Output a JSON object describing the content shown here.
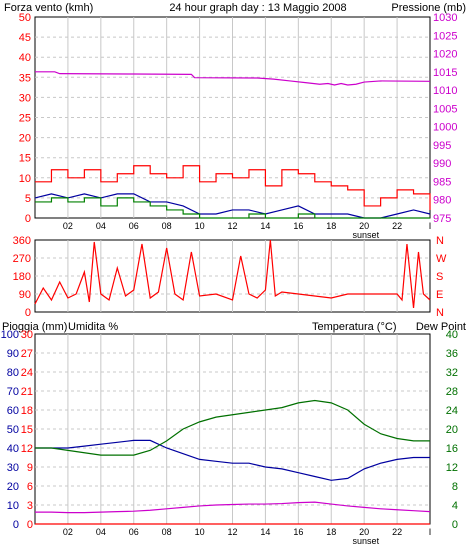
{
  "colors": {
    "wind": "#ff0000",
    "gust": "#ff0000",
    "avg_wind": "#008000",
    "pressure": "#cc00cc",
    "humidity": "#0000a0",
    "temperature": "#007000",
    "dew_point": "#cc00cc",
    "rain": "#ff0000",
    "grid": "#c8c8c8",
    "axis": "#000000",
    "frame_bg": "#ffffff"
  },
  "header": {
    "left_label": "Forza vento (kmh)",
    "title": "24 hour graph day : 13 Maggio 2008",
    "right_label": "Pressione (mb)"
  },
  "time_axis": {
    "ticks": [
      "02",
      "04",
      "06",
      "08",
      "10",
      "12",
      "14",
      "16",
      "18",
      "20",
      "22",
      "I"
    ],
    "sunset_label": "sunset"
  },
  "chart_data": [
    {
      "type": "line",
      "title": "24 hour graph day : 13 Maggio 2008",
      "xlabel": "",
      "x_range": [
        0,
        24
      ],
      "left_axis": {
        "label": "Forza vento (kmh)",
        "ticks": [
          0,
          5,
          10,
          15,
          20,
          25,
          30,
          35,
          40,
          45,
          50
        ],
        "range": [
          0,
          50
        ]
      },
      "right_axis": {
        "label": "Pressione (mb)",
        "ticks": [
          975,
          980,
          985,
          990,
          995,
          1000,
          1005,
          1010,
          1015,
          1020,
          1025,
          1030
        ],
        "range": [
          975,
          1030
        ]
      },
      "series": [
        {
          "axis": "right",
          "x": [
            0,
            1.2,
            1.5,
            6,
            9.5,
            9.7,
            13.5,
            14.5,
            15.5,
            16.5,
            17.3,
            17.8,
            18.2,
            18.6,
            19.0,
            19.5,
            20,
            21,
            24
          ],
          "values": [
            1015.0,
            1015.0,
            1014.5,
            1014.4,
            1014.3,
            1013.4,
            1013.3,
            1013.0,
            1012.5,
            1012.0,
            1011.6,
            1011.8,
            1011.4,
            1011.8,
            1011.4,
            1011.6,
            1012.2,
            1012.5,
            1012.4
          ]
        },
        {
          "axis": "left",
          "x": [
            0,
            1,
            2,
            3,
            4,
            5,
            6,
            7,
            8,
            9,
            10,
            11,
            12,
            13,
            14,
            15,
            16,
            17,
            18,
            19,
            20,
            21,
            22,
            23,
            24
          ],
          "values": [
            9,
            12,
            10,
            12,
            9,
            11,
            13,
            11,
            10,
            13,
            9,
            11,
            10,
            12,
            8,
            12,
            11,
            9,
            8,
            7,
            3,
            5,
            7,
            6,
            2
          ]
        },
        {
          "axis": "left",
          "x": [
            0,
            1,
            2,
            3,
            4,
            5,
            6,
            7,
            8,
            9,
            10,
            11,
            12,
            13,
            14,
            15,
            16,
            17,
            18,
            19,
            20,
            21,
            22,
            23,
            24
          ],
          "values": [
            5,
            6,
            5,
            6,
            5,
            6,
            6,
            4,
            4,
            3,
            1,
            1,
            2,
            2,
            1,
            2,
            3,
            1,
            1,
            1,
            0,
            0,
            1,
            2,
            1
          ]
        },
        {
          "axis": "left",
          "x": [
            0,
            1,
            2,
            3,
            4,
            5,
            6,
            7,
            8,
            9,
            10,
            11,
            12,
            13,
            14,
            15,
            16,
            17,
            18,
            19,
            20,
            21,
            22,
            23,
            24
          ],
          "values": [
            4,
            5,
            4,
            5,
            3,
            5,
            4,
            3,
            2,
            1,
            0,
            0,
            0,
            1,
            0,
            0,
            1,
            0,
            0,
            0,
            0,
            0,
            0,
            0,
            0
          ]
        }
      ]
    },
    {
      "type": "line",
      "x_range": [
        0,
        24
      ],
      "left_axis": {
        "ticks": [
          0,
          90,
          180,
          270,
          360
        ],
        "range": [
          0,
          360
        ]
      },
      "right_axis": {
        "ticks": [
          "N",
          "W",
          "S",
          "E",
          "N"
        ]
      },
      "series": [
        {
          "x": [
            0,
            0.5,
            1,
            1.5,
            2,
            2.5,
            3,
            3.3,
            3.6,
            4,
            4.5,
            5,
            5.5,
            6,
            6.5,
            7,
            7.5,
            8,
            8.5,
            9,
            9.5,
            10,
            11,
            12,
            12.5,
            13,
            13.5,
            14,
            14.3,
            14.6,
            15,
            16,
            17,
            18,
            19,
            20,
            21,
            22,
            22.3,
            22.6,
            23,
            23.3,
            23.6,
            24
          ],
          "values": [
            40,
            120,
            60,
            150,
            70,
            90,
            200,
            50,
            350,
            90,
            60,
            220,
            80,
            110,
            340,
            70,
            100,
            320,
            90,
            60,
            300,
            80,
            90,
            60,
            280,
            90,
            70,
            110,
            360,
            80,
            100,
            90,
            80,
            70,
            90,
            90,
            90,
            90,
            60,
            340,
            20,
            300,
            90,
            60
          ]
        }
      ]
    },
    {
      "type": "line",
      "x_range": [
        0,
        24
      ],
      "left_axis": {
        "label": "Pioggia (mm)",
        "ticks": [
          0,
          3,
          6,
          9,
          12,
          15,
          18,
          21,
          24,
          27,
          30
        ],
        "range": [
          0,
          30
        ]
      },
      "humidity_axis": {
        "label": "Umidita %",
        "ticks": [
          0,
          10,
          20,
          30,
          40,
          50,
          60,
          70,
          80,
          90,
          100
        ],
        "range": [
          0,
          100
        ]
      },
      "right_axis": {
        "label": "Temperatura (°C)",
        "ticks": [
          0,
          4,
          8,
          12,
          16,
          20,
          24,
          28,
          32,
          36,
          40
        ],
        "range": [
          0,
          40
        ]
      },
      "right_label_2": "Dew Point",
      "series": [
        {
          "axis": "humidity",
          "x": [
            0,
            1,
            2,
            3,
            4,
            5,
            6,
            7,
            8,
            9,
            10,
            11,
            12,
            13,
            14,
            15,
            16,
            17,
            18,
            19,
            20,
            21,
            22,
            23,
            24
          ],
          "values": [
            40,
            40,
            40,
            41,
            42,
            43,
            44,
            44,
            40,
            37,
            34,
            33,
            32,
            32,
            30,
            29,
            27,
            25,
            23,
            24,
            29,
            32,
            34,
            35,
            35
          ]
        },
        {
          "axis": "right",
          "x": [
            0,
            1,
            2,
            3,
            4,
            5,
            6,
            7,
            8,
            9,
            10,
            11,
            12,
            13,
            14,
            15,
            16,
            17,
            18,
            19,
            20,
            21,
            22,
            23,
            24
          ],
          "values": [
            16,
            16,
            15.5,
            15,
            14.5,
            14.5,
            14.5,
            15.5,
            17.5,
            20,
            21.5,
            22.5,
            23,
            23.5,
            24,
            24.5,
            25.5,
            26,
            25.5,
            24,
            21,
            19,
            18,
            17.5,
            17.5
          ]
        },
        {
          "axis": "right",
          "x": [
            0,
            1,
            2,
            3,
            4,
            5,
            6,
            7,
            8,
            9,
            10,
            11,
            12,
            13,
            14,
            15,
            16,
            17,
            18,
            19,
            20,
            21,
            22,
            23,
            24
          ],
          "values": [
            2.5,
            2.5,
            2.4,
            2.4,
            2.5,
            2.6,
            2.7,
            2.9,
            3.2,
            3.5,
            3.8,
            4.0,
            4.1,
            4.2,
            4.2,
            4.3,
            4.5,
            4.6,
            4.2,
            3.8,
            3.5,
            3.2,
            3.0,
            2.8,
            2.6
          ]
        },
        {
          "axis": "left",
          "x": [
            0,
            24
          ],
          "values": [
            0,
            0
          ]
        }
      ]
    }
  ]
}
